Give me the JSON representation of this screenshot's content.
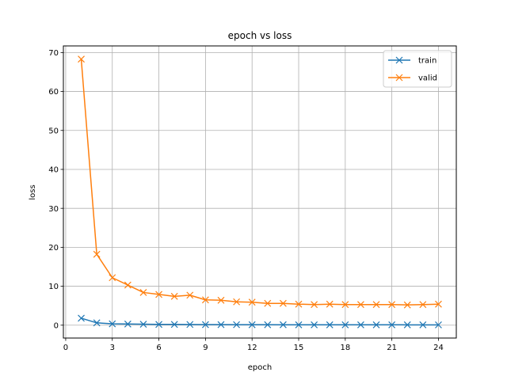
{
  "chart_data": {
    "type": "line",
    "title": "epoch vs loss",
    "xlabel": "epoch",
    "ylabel": "loss",
    "xlim": [
      -0.15,
      25.15
    ],
    "ylim": [
      -3.3,
      71.7
    ],
    "xticks": [
      0,
      3,
      6,
      9,
      12,
      15,
      18,
      21,
      24
    ],
    "yticks": [
      0,
      10,
      20,
      30,
      40,
      50,
      60,
      70
    ],
    "grid": true,
    "legend_position": "top-right",
    "x": [
      1,
      2,
      3,
      4,
      5,
      6,
      7,
      8,
      9,
      10,
      11,
      12,
      13,
      14,
      15,
      16,
      17,
      18,
      19,
      20,
      21,
      22,
      23,
      24
    ],
    "series": [
      {
        "name": "train",
        "color": "#1f77b4",
        "marker": "x",
        "values": [
          1.8,
          0.6,
          0.35,
          0.3,
          0.25,
          0.2,
          0.2,
          0.18,
          0.15,
          0.15,
          0.13,
          0.12,
          0.12,
          0.11,
          0.1,
          0.1,
          0.1,
          0.1,
          0.1,
          0.1,
          0.1,
          0.09,
          0.09,
          0.08
        ]
      },
      {
        "name": "valid",
        "color": "#ff7f0e",
        "marker": "x",
        "values": [
          68.3,
          18.2,
          12.2,
          10.3,
          8.4,
          7.9,
          7.4,
          7.7,
          6.5,
          6.4,
          6.0,
          5.9,
          5.6,
          5.6,
          5.4,
          5.3,
          5.4,
          5.3,
          5.3,
          5.3,
          5.3,
          5.2,
          5.3,
          5.4
        ]
      }
    ]
  }
}
